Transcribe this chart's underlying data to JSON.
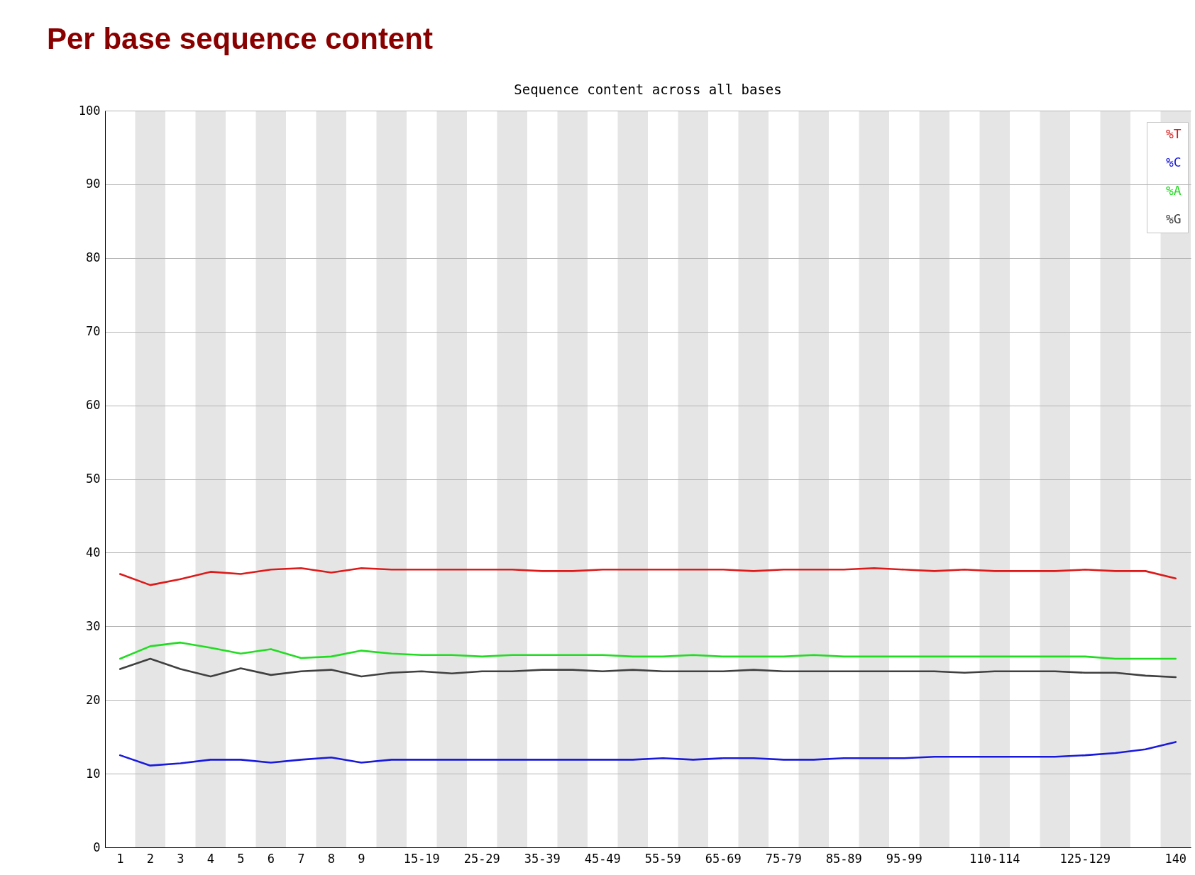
{
  "chart_data": {
    "type": "line",
    "title": "Per base sequence content",
    "subtitle": "Sequence content across all bases",
    "categories": [
      "1",
      "2",
      "3",
      "4",
      "5",
      "6",
      "7",
      "8",
      "9",
      null,
      "15-19",
      null,
      "25-29",
      null,
      "35-39",
      null,
      "45-49",
      null,
      "55-59",
      null,
      "65-69",
      null,
      "75-79",
      null,
      "85-89",
      null,
      "95-99",
      null,
      null,
      "110-114",
      null,
      null,
      "125-129",
      null,
      null,
      "140"
    ],
    "series": [
      {
        "name": "%T",
        "color": "#dc1a1a",
        "values": [
          37.1,
          35.6,
          36.4,
          37.4,
          37.1,
          37.7,
          37.9,
          37.3,
          37.9,
          37.7,
          37.7,
          37.7,
          37.7,
          37.7,
          37.5,
          37.5,
          37.7,
          37.7,
          37.7,
          37.7,
          37.7,
          37.5,
          37.7,
          37.7,
          37.7,
          37.9,
          37.7,
          37.5,
          37.7,
          37.5,
          37.5,
          37.5,
          37.7,
          37.5,
          37.5,
          36.5
        ]
      },
      {
        "name": "%C",
        "color": "#1a1adc",
        "values": [
          12.5,
          11.1,
          11.4,
          11.9,
          11.9,
          11.5,
          11.9,
          12.2,
          11.5,
          11.9,
          11.9,
          11.9,
          11.9,
          11.9,
          11.9,
          11.9,
          11.9,
          11.9,
          12.1,
          11.9,
          12.1,
          12.1,
          11.9,
          11.9,
          12.1,
          12.1,
          12.1,
          12.3,
          12.3,
          12.3,
          12.3,
          12.3,
          12.5,
          12.8,
          13.3,
          14.3
        ]
      },
      {
        "name": "%A",
        "color": "#22dc22",
        "values": [
          25.6,
          27.3,
          27.8,
          27.1,
          26.3,
          26.9,
          25.7,
          25.9,
          26.7,
          26.3,
          26.1,
          26.1,
          25.9,
          26.1,
          26.1,
          26.1,
          26.1,
          25.9,
          25.9,
          26.1,
          25.9,
          25.9,
          25.9,
          26.1,
          25.9,
          25.9,
          25.9,
          25.9,
          25.9,
          25.9,
          25.9,
          25.9,
          25.9,
          25.6,
          25.6,
          25.6
        ]
      },
      {
        "name": "%G",
        "color": "#404040",
        "values": [
          24.2,
          25.6,
          24.2,
          23.2,
          24.3,
          23.4,
          23.9,
          24.1,
          23.2,
          23.7,
          23.9,
          23.6,
          23.9,
          23.9,
          24.1,
          24.1,
          23.9,
          24.1,
          23.9,
          23.9,
          23.9,
          24.1,
          23.9,
          23.9,
          23.9,
          23.9,
          23.9,
          23.9,
          23.7,
          23.9,
          23.9,
          23.9,
          23.7,
          23.7,
          23.3,
          23.1
        ]
      }
    ],
    "ylim": [
      0,
      100
    ],
    "yticks": [
      0,
      10,
      20,
      30,
      40,
      50,
      60,
      70,
      80,
      90,
      100
    ],
    "grid": true,
    "legend": "top right"
  }
}
